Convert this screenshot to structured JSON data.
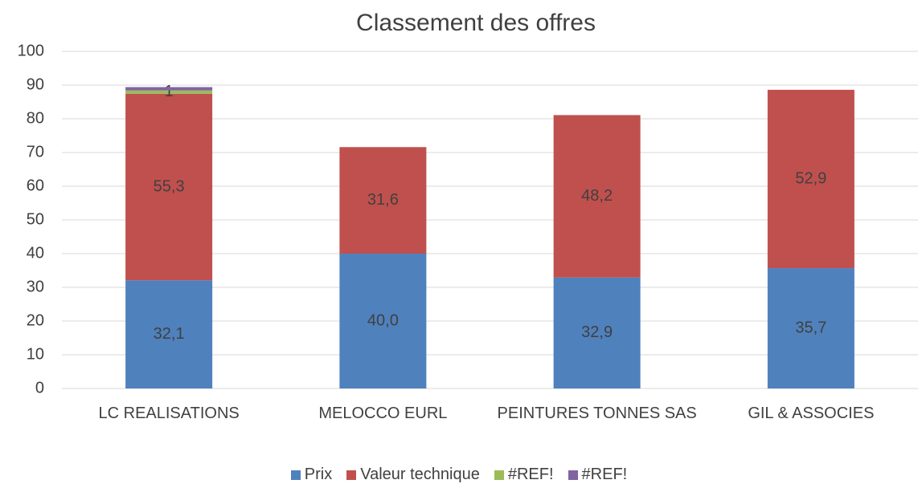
{
  "chart_data": {
    "type": "stacked_bar",
    "title": "Classement des offres",
    "categories": [
      "LC REALISATIONS",
      "MELOCCO EURL",
      "PEINTURES TONNES SAS",
      "GIL & ASSOCIES"
    ],
    "series": [
      {
        "name": "Prix",
        "color": "#4f81bd",
        "values": [
          32.1,
          40.0,
          32.9,
          35.7
        ],
        "value_labels": [
          "32,1",
          "40,0",
          "32,9",
          "35,7"
        ]
      },
      {
        "name": "Valeur technique",
        "color": "#c0504d",
        "values": [
          55.3,
          31.6,
          48.2,
          52.9
        ],
        "value_labels": [
          "55,3",
          "31,6",
          "48,2",
          "52,9"
        ]
      },
      {
        "name": "#REF!",
        "color": "#9bbb59",
        "values": [
          1,
          0,
          0,
          0
        ],
        "value_labels": [
          "1",
          null,
          null,
          null
        ]
      },
      {
        "name": "#REF!",
        "color": "#8064a2",
        "values": [
          1,
          0,
          0,
          0
        ]
      }
    ],
    "ylim": [
      0,
      100
    ],
    "yticks": [
      0,
      10,
      20,
      30,
      40,
      50,
      60,
      70,
      80,
      90,
      100
    ],
    "grid": true,
    "legend": "bottom"
  }
}
